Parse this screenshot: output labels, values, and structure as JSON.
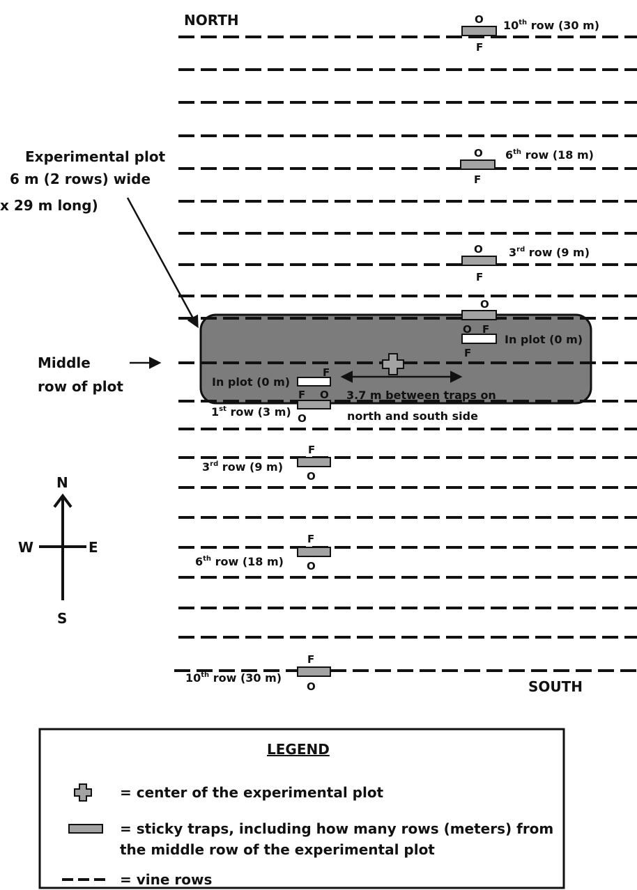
{
  "colors": {
    "plot_fill": "#7c7c7c",
    "trap_fill": "#a3a3a3",
    "ink": "#111111"
  },
  "headers": {
    "north": "NORTH",
    "south": "SOUTH"
  },
  "plot_label": {
    "line1": "Experimental plot",
    "line2": "6 m (2 rows) wide",
    "line3": "x 29 m long)"
  },
  "middle_row_label": {
    "line1": "Middle",
    "line2": "row of plot"
  },
  "distance_label": {
    "line1": "3.7 m between traps on",
    "line2": "north and south side"
  },
  "trap_labels": {
    "n10": {
      "num": "10",
      "sup": "th",
      "rest": " row (30 m)"
    },
    "n6": {
      "num": "6",
      "sup": "th",
      "rest": " row (18 m)"
    },
    "n3": {
      "num": "3",
      "sup": "rd",
      "rest": " row (9 m)"
    },
    "n_in": "In plot (0 m)",
    "s_in": "In plot (0 m)",
    "s1": {
      "num": "1",
      "sup": "st",
      "rest": " row (3 m)"
    },
    "s3": {
      "num": "3",
      "sup": "rd",
      "rest": " row (9 m)"
    },
    "s6": {
      "num": "6",
      "sup": "th",
      "rest": " row (18 m)"
    },
    "s10": {
      "num": "10",
      "sup": "th",
      "rest": " row (30 m)"
    }
  },
  "trap_letters": {
    "o": "O",
    "f": "F"
  },
  "compass": {
    "n": "N",
    "s": "S",
    "e": "E",
    "w": "W"
  },
  "legend": {
    "title": "LEGEND",
    "center": "= center of the experimental plot",
    "traps_line1": "= sticky traps, including how many rows (meters) from",
    "traps_line2": "the middle row of the experimental plot",
    "vines": "= vine rows"
  }
}
